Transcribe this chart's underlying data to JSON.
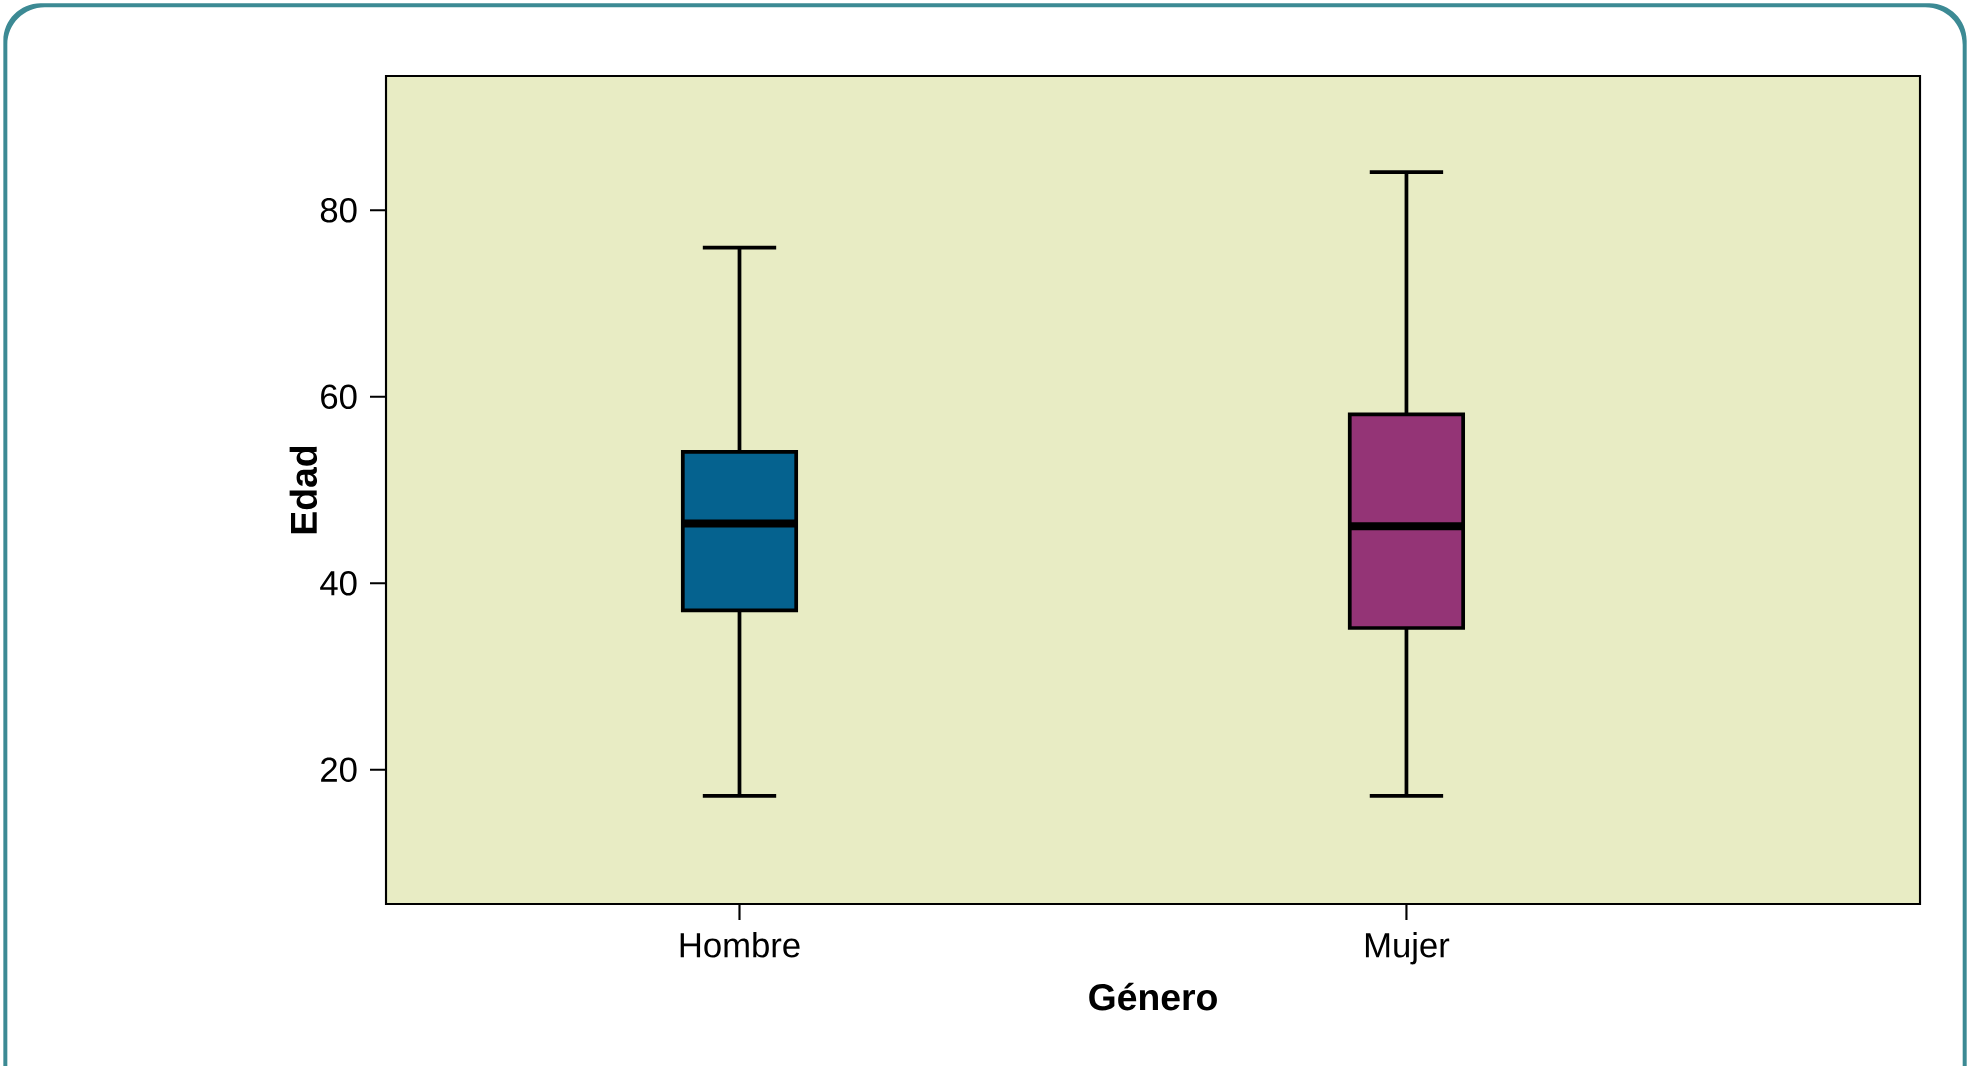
{
  "chart_data": {
    "type": "box",
    "xlabel": "Género",
    "ylabel": "Edad",
    "categories": [
      "Hombre",
      "Mujer"
    ],
    "colors": [
      "#05628f",
      "#943476"
    ],
    "boxes": [
      {
        "low": 17.2,
        "q1": 37.1,
        "median": 46.4,
        "q3": 54.1,
        "high": 76
      },
      {
        "low": 17.2,
        "q1": 35.2,
        "median": 46.1,
        "q3": 58.1,
        "high": 84.1
      }
    ],
    "ylim": [
      5.6,
      94.4
    ],
    "yticks": [
      20,
      40,
      60,
      80
    ],
    "grid": false
  }
}
